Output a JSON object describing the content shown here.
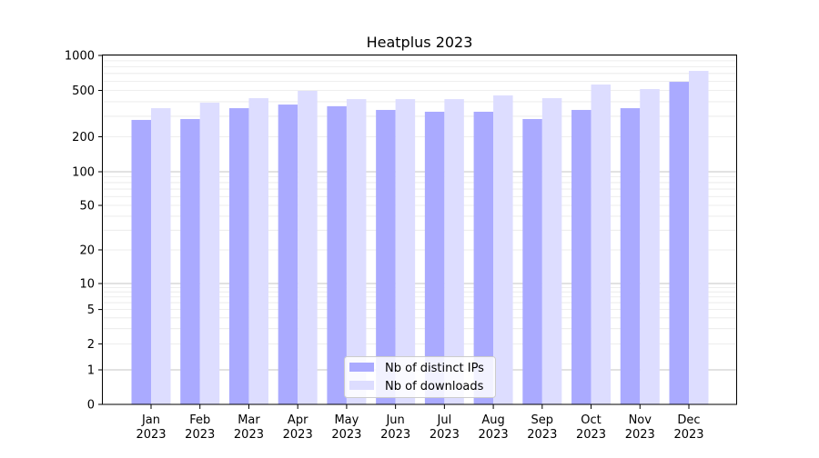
{
  "chart_data": {
    "type": "bar",
    "title": "Heatplus 2023",
    "xlabel": "",
    "ylabel": "",
    "yscale": "symlog",
    "ylim": [
      0,
      1000
    ],
    "grid": true,
    "legend_position": "bottom-center",
    "categories": [
      "Jan\n2023",
      "Feb\n2023",
      "Mar\n2023",
      "Apr\n2023",
      "May\n2023",
      "Jun\n2023",
      "Jul\n2023",
      "Aug\n2023",
      "Sep\n2023",
      "Oct\n2023",
      "Nov\n2023",
      "Dec\n2023"
    ],
    "yticks": [
      0,
      1,
      2,
      5,
      10,
      20,
      50,
      100,
      200,
      500,
      1000
    ],
    "series": [
      {
        "name": "Nb of distinct IPs",
        "color": "#aaaaff",
        "values": [
          279,
          284,
          352,
          378,
          366,
          340,
          328,
          328,
          284,
          340,
          352,
          593
        ]
      },
      {
        "name": "Nb of downloads",
        "color": "#ddddff",
        "values": [
          352,
          392,
          429,
          496,
          421,
          421,
          421,
          453,
          429,
          562,
          514,
          736
        ]
      }
    ]
  }
}
